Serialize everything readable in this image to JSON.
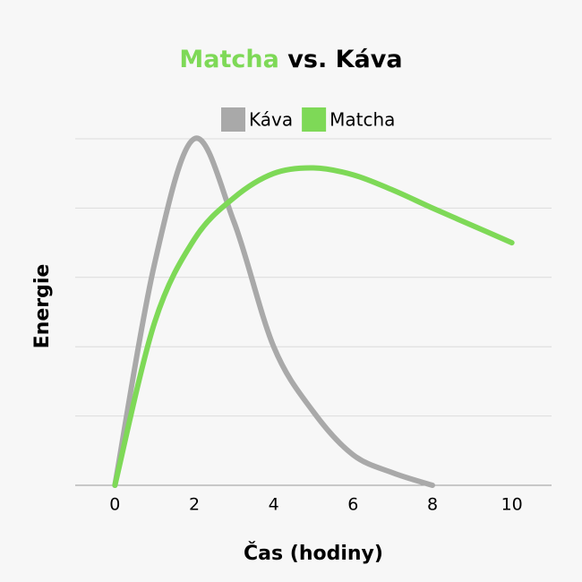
{
  "chart_data": {
    "type": "line",
    "title_highlight": "Matcha",
    "title_highlight_color": "#7ed957",
    "title_rest": "vs. Káva",
    "x_label": "Čas (hodiny)",
    "y_label": "Energie",
    "xlim": [
      -1,
      11
    ],
    "xticks": [
      0,
      2,
      4,
      6,
      8,
      10
    ],
    "ylim": [
      0,
      5
    ],
    "grid": true,
    "series": [
      {
        "name": "Káva",
        "color": "#a9a9a9",
        "x": [
          0,
          1,
          2,
          3,
          4,
          5,
          6,
          7,
          8
        ],
        "values": [
          0,
          3.2,
          5,
          3.8,
          2.0,
          1.06,
          0.44,
          0.18,
          0
        ]
      },
      {
        "name": "Matcha",
        "color": "#7ed957",
        "x": [
          0,
          1,
          2,
          3,
          4,
          5,
          6,
          7,
          8,
          9,
          10
        ],
        "values": [
          0,
          2.35,
          3.55,
          4.15,
          4.5,
          4.58,
          4.48,
          4.26,
          4.0,
          3.75,
          3.5
        ]
      }
    ]
  }
}
